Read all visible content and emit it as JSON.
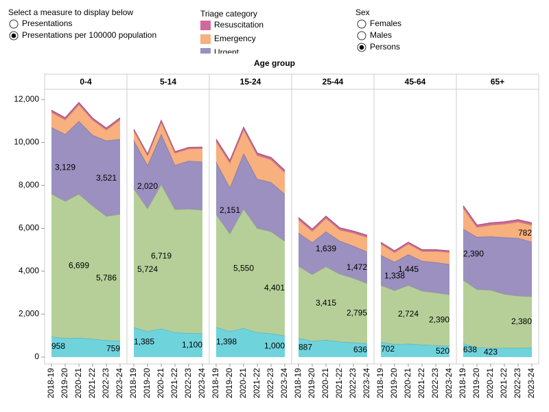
{
  "measure_control": {
    "label": "Select a measure to display below",
    "options": [
      "Presentations",
      "Presentations per 100000 population"
    ],
    "selected": 1
  },
  "triage_legend": {
    "label": "Triage category"
  },
  "sex_control": {
    "label": "Sex",
    "options": [
      "Females",
      "Males",
      "Persons"
    ],
    "selected": 2
  },
  "facet_title": "Age group",
  "chart_data": [
    {
      "type": "area",
      "stacked": true,
      "title": "0-4",
      "categories": [
        "2018-19",
        "2019-20",
        "2020-21",
        "2021-22",
        "2022-23",
        "2023-24"
      ],
      "ylim": [
        0,
        12000
      ],
      "yticks": [
        0,
        {
          "value": 2000,
          "label": "2,000"
        },
        {
          "value": 4000,
          "label": "4,000"
        },
        {
          "value": 6000,
          "label": "6,000"
        },
        {
          "value": 8000,
          "label": "8,000"
        },
        {
          "value": 10000,
          "label": "10,000"
        },
        {
          "value": 12000,
          "label": "12,000"
        }
      ],
      "series": [
        {
          "color": "#6fd3dc",
          "values": [
            958,
            880,
            900,
            850,
            780,
            759
          ],
          "value_labels": [
            "958",
            null,
            null,
            null,
            null,
            "759"
          ]
        },
        {
          "color": "#b6cf99",
          "values": [
            6650,
            6380,
            6699,
            6200,
            5786,
            5900
          ],
          "value_labels": [
            null,
            null,
            "6,699",
            null,
            "5,786",
            null
          ]
        },
        {
          "name": "Urgent",
          "color": "#9b90bf",
          "values": [
            3100,
            3129,
            3400,
            3300,
            3521,
            3500
          ],
          "value_labels": [
            null,
            "3,129",
            null,
            null,
            "3,521",
            null
          ]
        },
        {
          "name": "Emergency",
          "color": "#f7b07e",
          "values": [
            700,
            670,
            770,
            700,
            500,
            900
          ]
        },
        {
          "name": "Resuscitation",
          "color": "#d06a9c",
          "values": [
            90,
            90,
            90,
            80,
            80,
            90
          ]
        }
      ]
    },
    {
      "type": "area",
      "stacked": true,
      "title": "5-14",
      "categories": [
        "2018-19",
        "2019-20",
        "2020-21",
        "2021-22",
        "2022-23",
        "2023-24"
      ],
      "ylim": [
        0,
        12000
      ],
      "series": [
        {
          "color": "#6fd3dc",
          "values": [
            1385,
            1200,
            1330,
            1150,
            1120,
            1100
          ],
          "value_labels": [
            "1,385",
            null,
            null,
            null,
            null,
            "1,100"
          ]
        },
        {
          "color": "#b6cf99",
          "values": [
            6465,
            5724,
            6719,
            5730,
            5780,
            5750
          ],
          "value_labels": [
            null,
            "5,724",
            "6,719",
            null,
            null,
            null
          ]
        },
        {
          "name": "Urgent",
          "color": "#9b90bf",
          "values": [
            2250,
            2020,
            2350,
            2070,
            2250,
            2250
          ],
          "value_labels": [
            null,
            "2,020",
            null,
            null,
            null,
            null
          ]
        },
        {
          "name": "Emergency",
          "color": "#f7b07e",
          "values": [
            450,
            450,
            560,
            560,
            560,
            620
          ]
        },
        {
          "name": "Resuscitation",
          "color": "#d06a9c",
          "values": [
            60,
            60,
            60,
            60,
            60,
            60
          ]
        }
      ]
    },
    {
      "type": "area",
      "stacked": true,
      "title": "15-24",
      "categories": [
        "2018-19",
        "2019-20",
        "2020-21",
        "2021-22",
        "2022-23",
        "2023-24"
      ],
      "ylim": [
        0,
        12000
      ],
      "series": [
        {
          "color": "#6fd3dc",
          "values": [
            1398,
            1200,
            1350,
            1150,
            1100,
            1000
          ],
          "value_labels": [
            "1,398",
            null,
            null,
            null,
            null,
            "1,000"
          ]
        },
        {
          "color": "#b6cf99",
          "values": [
            5252,
            4550,
            5550,
            4850,
            4750,
            4401
          ],
          "value_labels": [
            null,
            null,
            "5,550",
            null,
            null,
            "4,401"
          ]
        },
        {
          "name": "Urgent",
          "color": "#9b90bf",
          "values": [
            2450,
            2151,
            2600,
            2300,
            2300,
            2199
          ],
          "value_labels": [
            null,
            "2,151",
            null,
            null,
            null,
            null
          ]
        },
        {
          "name": "Emergency",
          "color": "#f7b07e",
          "values": [
            950,
            1150,
            1100,
            1100,
            1050,
            1000
          ]
        },
        {
          "name": "Resuscitation",
          "color": "#d06a9c",
          "values": [
            100,
            100,
            100,
            100,
            100,
            100
          ]
        }
      ]
    },
    {
      "type": "area",
      "stacked": true,
      "title": "25-44",
      "categories": [
        "2018-19",
        "2019-20",
        "2020-21",
        "2021-22",
        "2022-23",
        "2023-24"
      ],
      "ylim": [
        0,
        12000
      ],
      "series": [
        {
          "color": "#6fd3dc",
          "values": [
            887,
            750,
            800,
            720,
            680,
            636
          ],
          "value_labels": [
            "887",
            null,
            null,
            null,
            null,
            "636"
          ]
        },
        {
          "color": "#b6cf99",
          "values": [
            3350,
            3100,
            3415,
            3150,
            3000,
            2795
          ],
          "value_labels": [
            null,
            null,
            "3,415",
            null,
            null,
            "2,795"
          ]
        },
        {
          "name": "Urgent",
          "color": "#9b90bf",
          "values": [
            1550,
            1500,
            1639,
            1550,
            1500,
            1472
          ],
          "value_labels": [
            null,
            null,
            "1,639",
            null,
            null,
            "1,472"
          ]
        },
        {
          "name": "Emergency",
          "color": "#f7b07e",
          "values": [
            620,
            520,
            620,
            510,
            600,
            680
          ]
        },
        {
          "name": "Resuscitation",
          "color": "#d06a9c",
          "values": [
            90,
            90,
            90,
            90,
            90,
            90
          ]
        }
      ]
    },
    {
      "type": "area",
      "stacked": true,
      "title": "45-64",
      "categories": [
        "2018-19",
        "2019-20",
        "2020-21",
        "2021-22",
        "2022-23",
        "2023-24"
      ],
      "ylim": [
        0,
        12000
      ],
      "series": [
        {
          "color": "#6fd3dc",
          "values": [
            702,
            600,
            620,
            580,
            550,
            520
          ],
          "value_labels": [
            "702",
            null,
            null,
            null,
            null,
            "520"
          ]
        },
        {
          "color": "#b6cf99",
          "values": [
            2650,
            2500,
            2724,
            2500,
            2450,
            2390
          ],
          "value_labels": [
            null,
            null,
            "2,724",
            null,
            null,
            "2,390"
          ]
        },
        {
          "name": "Urgent",
          "color": "#9b90bf",
          "values": [
            1400,
            1338,
            1445,
            1400,
            1420,
            1420
          ],
          "value_labels": [
            null,
            "1,338",
            "1,445",
            null,
            null,
            null
          ]
        },
        {
          "name": "Emergency",
          "color": "#f7b07e",
          "values": [
            520,
            440,
            490,
            450,
            510,
            550
          ]
        },
        {
          "name": "Resuscitation",
          "color": "#d06a9c",
          "values": [
            70,
            70,
            70,
            70,
            70,
            70
          ]
        }
      ]
    },
    {
      "type": "area",
      "stacked": true,
      "title": "65+",
      "categories": [
        "2018-19",
        "2019-20",
        "2020-21",
        "2021-22",
        "2022-23",
        "2023-24"
      ],
      "ylim": [
        0,
        12000
      ],
      "series": [
        {
          "color": "#6fd3dc",
          "values": [
            638,
            450,
            423,
            430,
            430,
            440
          ],
          "value_labels": [
            "638",
            null,
            "423",
            null,
            null,
            null
          ]
        },
        {
          "color": "#b6cf99",
          "values": [
            2950,
            2700,
            2700,
            2500,
            2420,
            2380
          ],
          "value_labels": [
            null,
            null,
            null,
            null,
            null,
            "2,380"
          ]
        },
        {
          "name": "Urgent",
          "color": "#9b90bf",
          "values": [
            2390,
            2450,
            2500,
            2650,
            2700,
            2550
          ],
          "value_labels": [
            "2,390",
            null,
            null,
            null,
            null,
            null
          ]
        },
        {
          "name": "Emergency",
          "color": "#f7b07e",
          "values": [
            972,
            450,
            530,
            620,
            750,
            782
          ],
          "value_labels": [
            null,
            null,
            null,
            null,
            null,
            "782"
          ]
        },
        {
          "name": "Resuscitation",
          "color": "#d06a9c",
          "values": [
            100,
            100,
            100,
            100,
            100,
            100
          ]
        }
      ]
    }
  ]
}
